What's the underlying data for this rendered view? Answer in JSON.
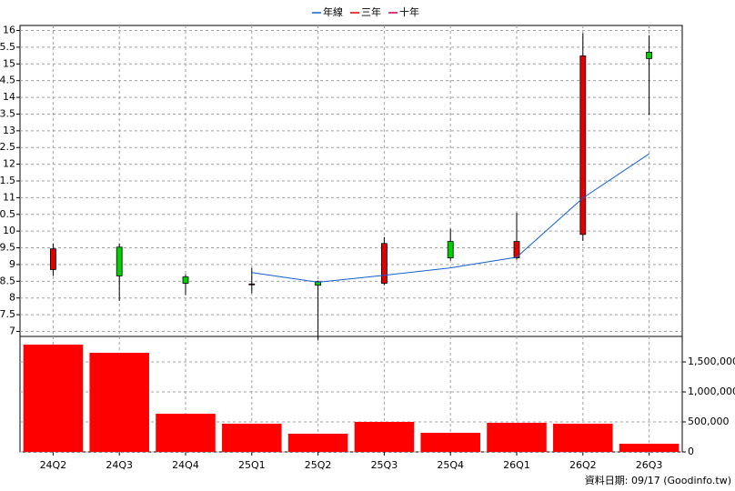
{
  "chart_data": [
    {
      "type": "candlestick",
      "open": [
        8.85,
        9.52,
        8.63,
        8.42,
        8.49,
        8.44,
        9.69,
        9.2,
        9.9,
        15.35
      ],
      "high": [
        9.63,
        9.63,
        8.71,
        8.9,
        8.52,
        9.82,
        10.07,
        10.55,
        15.92,
        15.86
      ],
      "low": [
        8.66,
        7.92,
        8.09,
        8.14,
        6.73,
        8.38,
        9.12,
        9.14,
        9.71,
        13.48
      ],
      "close": [
        9.47,
        8.66,
        8.44,
        8.42,
        8.38,
        9.63,
        9.2,
        9.69,
        15.24,
        15.16
      ],
      "up_color": "#e00000",
      "down_color": "#00d000",
      "series": [
        {
          "name": "年線",
          "color": "#1060d0",
          "values": [
            null,
            null,
            null,
            8.76,
            8.47,
            8.68,
            8.9,
            9.22,
            10.99,
            12.31
          ]
        },
        {
          "name": "三年",
          "color": "#e00000",
          "values": [
            null,
            null,
            null,
            null,
            null,
            null,
            null,
            null,
            null,
            null
          ]
        },
        {
          "name": "十年",
          "color": "#c00060",
          "values": [
            null,
            null,
            null,
            null,
            null,
            null,
            null,
            null,
            null,
            null
          ]
        }
      ],
      "ylim": [
        6.85,
        16.15
      ],
      "yticks": [
        7,
        7.5,
        8,
        8.5,
        9,
        9.5,
        10,
        10.5,
        11,
        11.5,
        12,
        12.5,
        13,
        13.5,
        14,
        14.5,
        15,
        15.5,
        16
      ],
      "grid": true,
      "legend": "top"
    },
    {
      "type": "bar",
      "categories": [
        "24Q2",
        "24Q3",
        "24Q4",
        "25Q1",
        "25Q2",
        "25Q3",
        "25Q4",
        "26Q1",
        "26Q2",
        "26Q3"
      ],
      "values": [
        1788000,
        1652000,
        636000,
        470000,
        303000,
        500000,
        318000,
        485000,
        470000,
        136000
      ],
      "color": "#ff0000",
      "ylim": [
        0,
        1925000
      ],
      "yticks": [
        0,
        {
          "value": 500000,
          "label": "500,000"
        },
        {
          "value": 1000000,
          "label": "1,000,000"
        },
        {
          "value": 1500000,
          "label": "1,500,000"
        }
      ],
      "grid": true,
      "source": "資料日期: 09/17  (Goodinfo.tw)"
    }
  ]
}
